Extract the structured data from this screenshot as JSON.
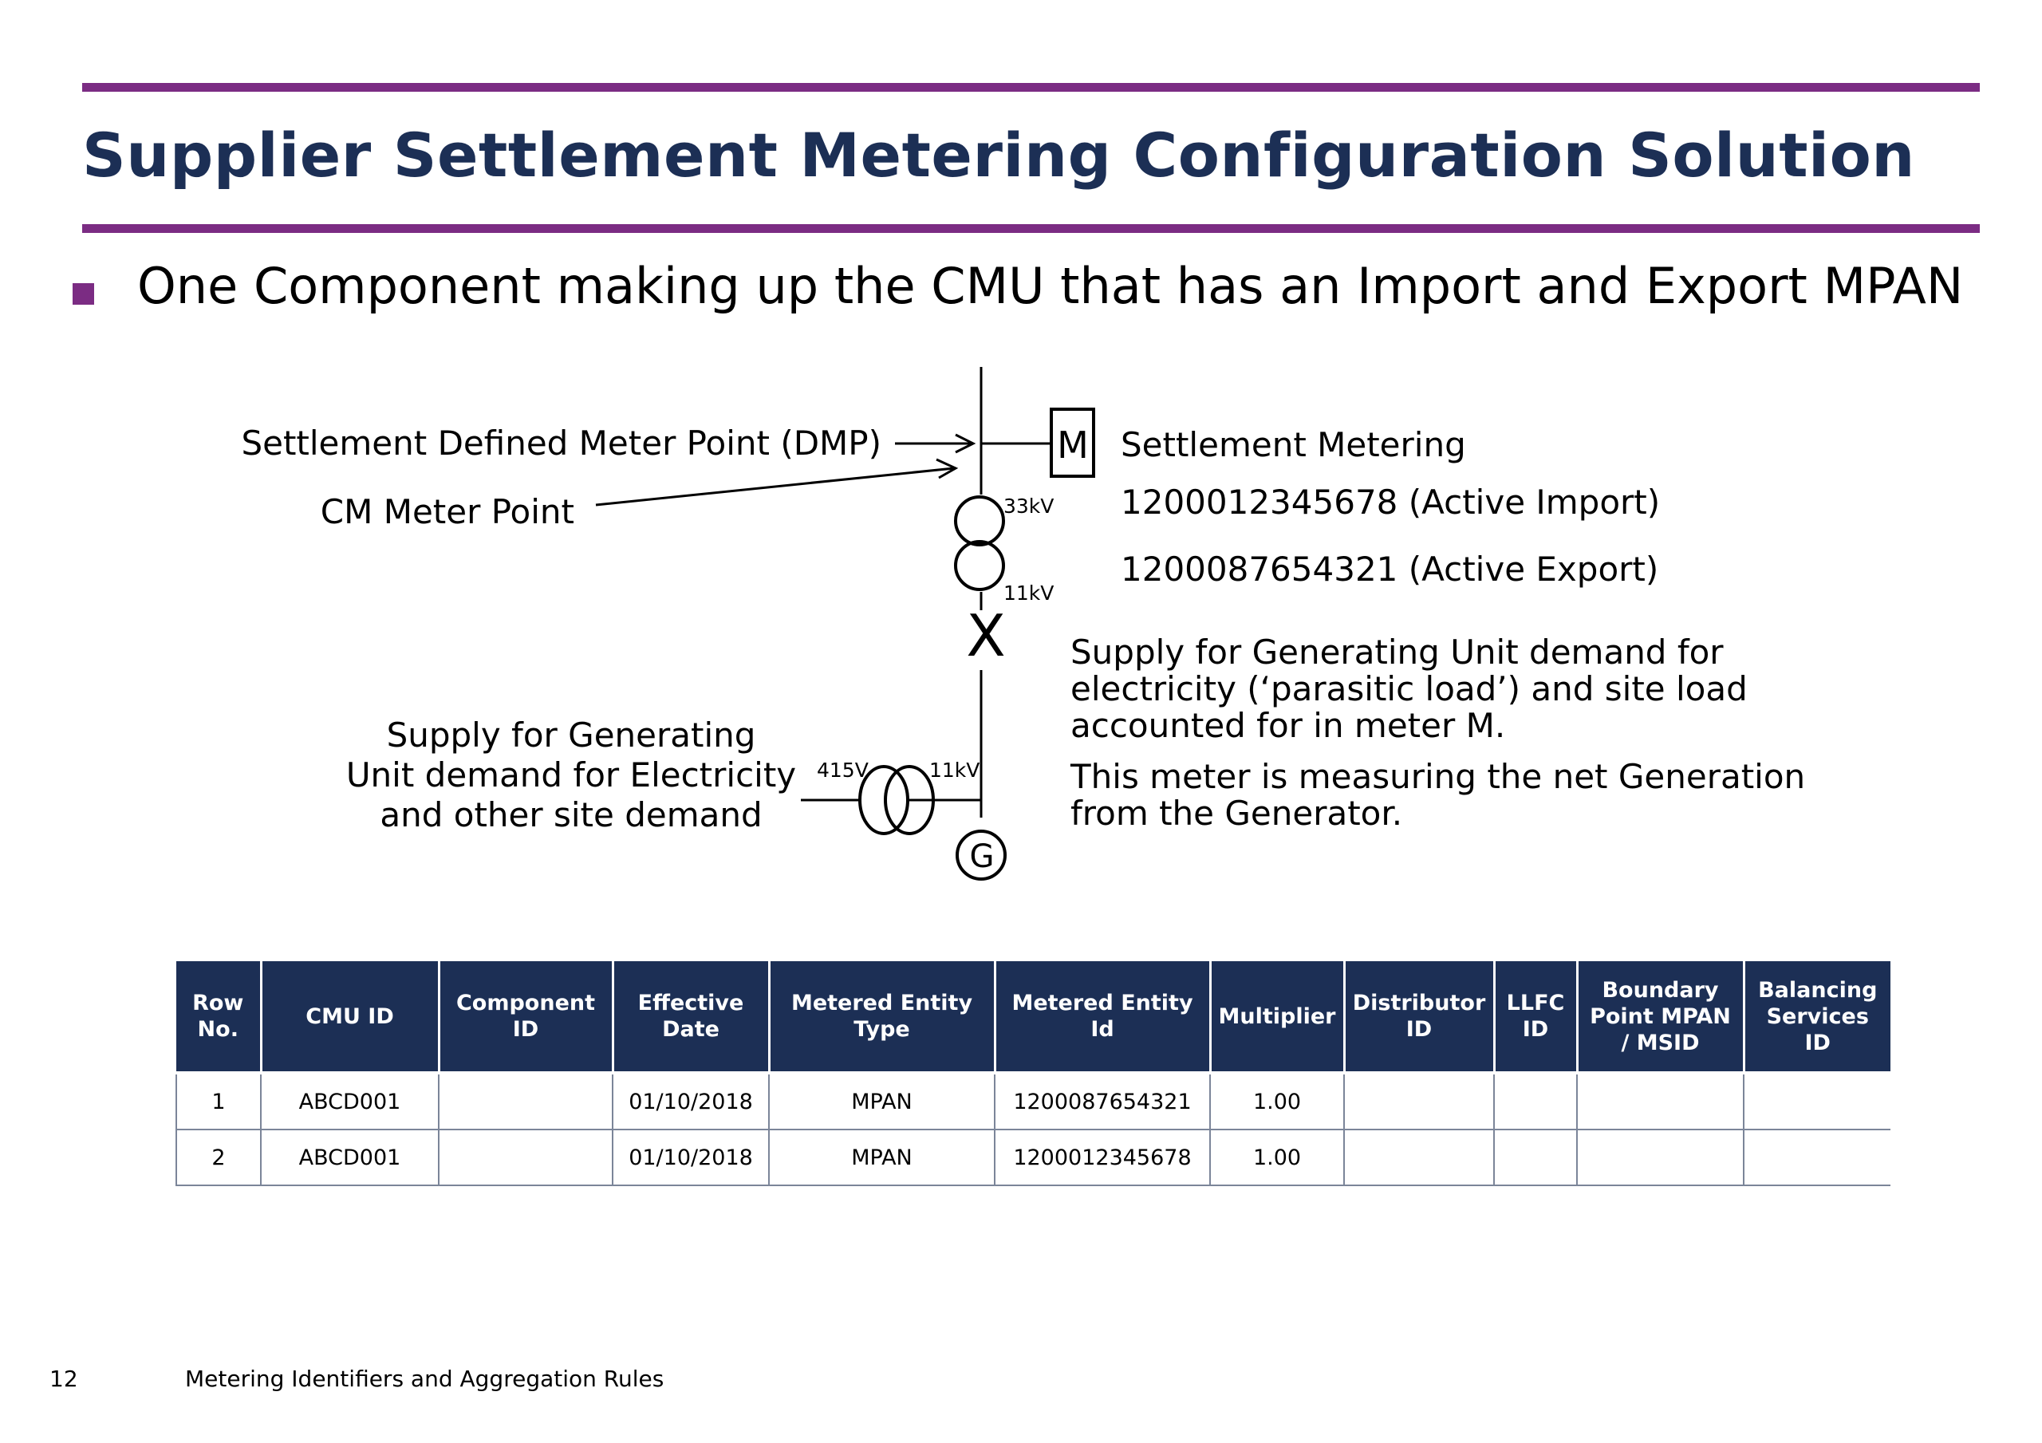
{
  "slide": {
    "title": "Supplier Settlement Metering Configuration Solution",
    "bullet": "One Component making up the CMU that has an Import and Export MPAN"
  },
  "diagram": {
    "dmp_label": "Settlement Defined Meter Point (DMP)",
    "cm_meter_point_label": "CM Meter Point",
    "meter_symbol": "M",
    "settlement_metering_label": "Settlement Metering",
    "import_mpan": "1200012345678 (Active Import)",
    "export_mpan": "1200087654321 (Active Export)",
    "voltage_hv": "33kV",
    "voltage_mv": "11kV",
    "switch_symbol": "X",
    "voltage_aux_mv": "11kV",
    "voltage_lv": "415V",
    "generator_symbol": "G",
    "left_note": [
      "Supply for Generating",
      "Unit demand for Electricity",
      "and other site demand"
    ],
    "right_note_1": [
      "Supply for Generating Unit demand for",
      "electricity (‘parasitic load’) and site load",
      "accounted for in meter M."
    ],
    "right_note_2": [
      "This meter is measuring the net Generation",
      "from the Generator."
    ]
  },
  "table": {
    "headers": [
      [
        "Row",
        "No."
      ],
      [
        "CMU ID"
      ],
      [
        "Component",
        "ID"
      ],
      [
        "Effective",
        "Date"
      ],
      [
        "Metered Entity",
        "Type"
      ],
      [
        "Metered Entity",
        "Id"
      ],
      [
        "Multiplier"
      ],
      [
        "Distributor",
        "ID"
      ],
      [
        "LLFC",
        "ID"
      ],
      [
        "Boundary",
        "Point MPAN",
        "/ MSID"
      ],
      [
        "Balancing",
        "Services",
        "ID"
      ]
    ],
    "rows": [
      [
        "1",
        "ABCD001",
        "",
        "01/10/2018",
        "MPAN",
        "1200087654321",
        "1.00",
        "",
        "",
        "",
        ""
      ],
      [
        "2",
        "ABCD001",
        "",
        "01/10/2018",
        "MPAN",
        "1200012345678",
        "1.00",
        "",
        "",
        "",
        ""
      ]
    ]
  },
  "footer": {
    "page_number": "12",
    "title": "Metering Identifiers and Aggregation Rules"
  },
  "colors": {
    "accent_purple": "#7b2c83",
    "title_navy": "#1c2f55",
    "table_header_bg": "#1c2f55",
    "table_border": "#7b8599"
  }
}
